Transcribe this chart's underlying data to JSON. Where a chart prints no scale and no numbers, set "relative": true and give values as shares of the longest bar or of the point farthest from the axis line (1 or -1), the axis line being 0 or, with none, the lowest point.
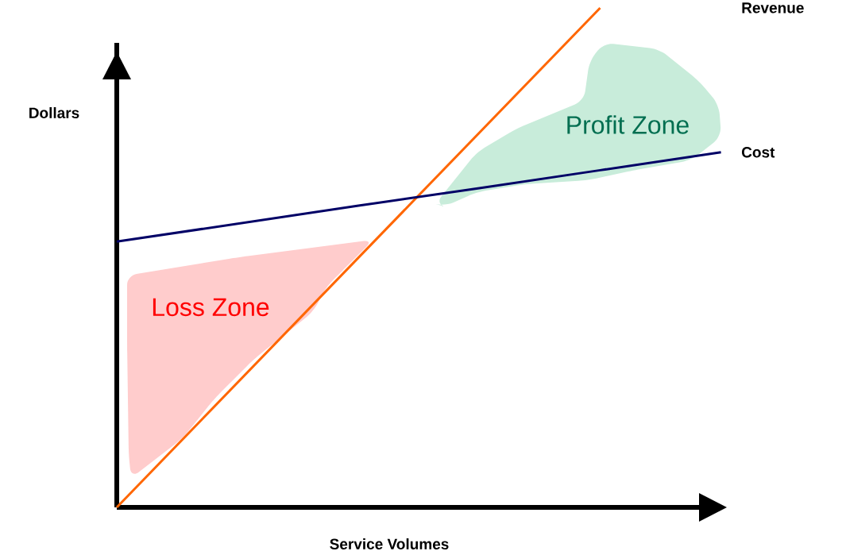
{
  "chart_data": {
    "type": "line",
    "relative": true,
    "xlabel": "Service Volumes",
    "ylabel": "Dollars",
    "categories": [
      null,
      null,
      null,
      null,
      null,
      null
    ],
    "series": [
      {
        "name": "Revenue",
        "color": "#ff6600",
        "values": [
          0,
          0.25,
          0.5,
          0.75,
          1,
          null
        ]
      },
      {
        "name": "Cost",
        "color": "#000066",
        "values": [
          0.532,
          0.568,
          0.604,
          0.639,
          0.675,
          0.711
        ]
      }
    ],
    "annotations": [
      "Loss Zone",
      "Profit Zone"
    ],
    "legend": false,
    "marker": "none",
    "line_style": "solid"
  }
}
